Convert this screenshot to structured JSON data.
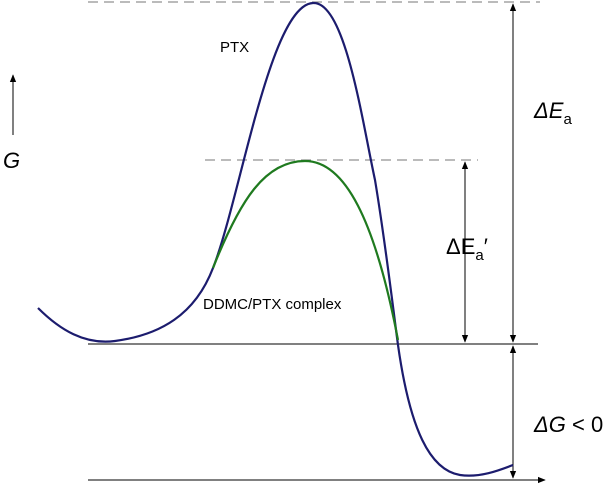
{
  "axis": {
    "label": "G"
  },
  "curves": {
    "upper": "PTX",
    "lower": "DDMC/PTX complex"
  },
  "annotations": {
    "activation": {
      "main": "ΔE",
      "sub": "a"
    },
    "activation_complex": {
      "main": "ΔE",
      "sub": "a",
      "suffix": "′"
    },
    "free_energy": {
      "main": "ΔG",
      "rest": " < 0"
    }
  }
}
